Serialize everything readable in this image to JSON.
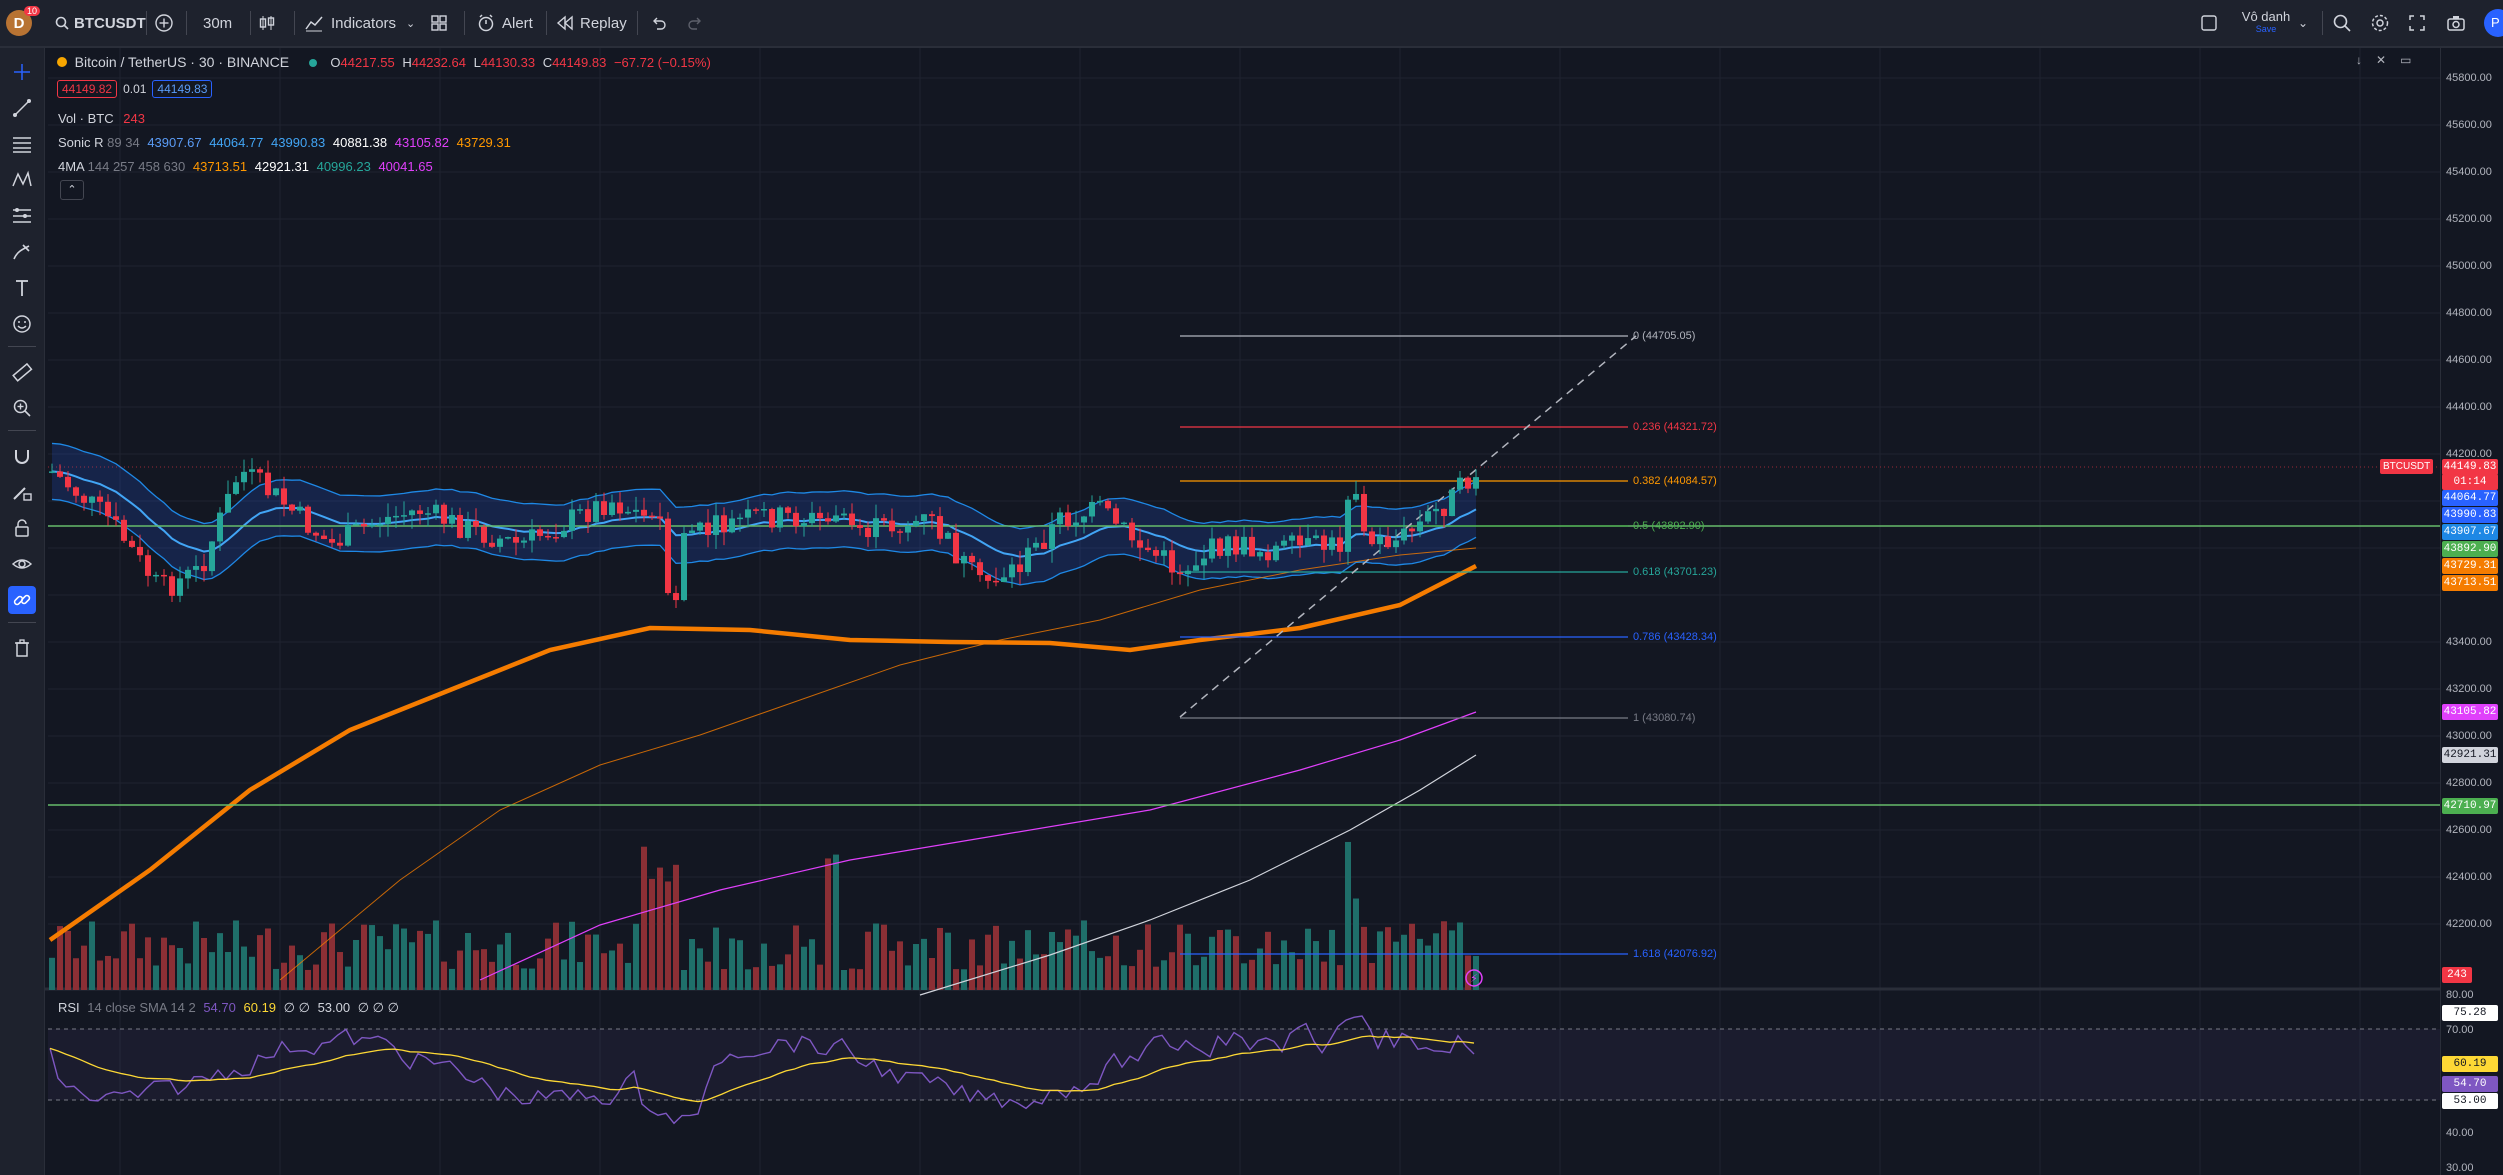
{
  "topbar": {
    "avatar_letter": "D",
    "notif_count": "10",
    "symbol": "BTCUSDT",
    "interval": "30m",
    "indicators_label": "Indicators",
    "alert_label": "Alert",
    "replay_label": "Replay",
    "layout_name": "Vô danh",
    "save_label": "Save",
    "publish_label": "P"
  },
  "legend": {
    "title": "Bitcoin / TetherUS · 30 · BINANCE",
    "o_label": "O",
    "o_val": "44217.55",
    "h_label": "H",
    "h_val": "44232.64",
    "l_label": "L",
    "l_val": "44130.33",
    "c_label": "C",
    "c_val": "44149.83",
    "change": "−67.72 (−0.15%)",
    "sell_price": "44149.82",
    "spread": "0.01",
    "buy_price": "44149.83",
    "vol_name": "Vol · BTC",
    "vol_val": "243",
    "sonic_name": "Sonic R",
    "sonic_params": "89 34",
    "sonic_vals": [
      "43907.67",
      "44064.77",
      "43990.83",
      "40881.38",
      "43105.82",
      "43729.31"
    ],
    "ma_name": "4MA",
    "ma_params": "144 257 458 630",
    "ma_vals": [
      "43713.51",
      "42921.31",
      "40996.23",
      "40041.65"
    ],
    "rsi_name": "RSI",
    "rsi_params": "14 close SMA 14 2",
    "rsi_vals": [
      "54.70",
      "60.19"
    ],
    "rsi_nulls": "∅ ∅",
    "rsi_level": "53.00",
    "rsi_nulls2": "∅ ∅ ∅"
  },
  "price_axis": [
    "45800.00",
    "45600.00",
    "45400.00",
    "45200.00",
    "45000.00",
    "44800.00",
    "44600.00",
    "44400.00",
    "44200.00",
    "43400.00",
    "43200.00",
    "43000.00",
    "42800.00",
    "42600.00",
    "42400.00",
    "42200.00"
  ],
  "rsi_axis": [
    "80.00",
    "70.00",
    "40.00",
    "30.00"
  ],
  "price_tags": {
    "symbol_tag": "BTCUSDT",
    "last": "44149.83",
    "countdown": "01:14",
    "t1": "44064.77",
    "t2": "43990.83",
    "t3": "43907.67",
    "t4": "43892.90",
    "t5": "43729.31",
    "t6": "43713.51",
    "t7": "43105.82",
    "t8": "42921.31",
    "t9": "42710.97",
    "vol": "243",
    "rsi1": "75.28",
    "rsi2": "60.19",
    "rsi3": "54.70",
    "rsi4": "53.00"
  },
  "fib": [
    {
      "label": "0 (44705.05)",
      "color": "#b2b5be"
    },
    {
      "label": "0.236 (44321.72)",
      "color": "#f23645"
    },
    {
      "label": "0.382 (44084.57)",
      "color": "#ff9800"
    },
    {
      "label": "0.5 (43892.90)",
      "color": "#4caf50"
    },
    {
      "label": "0.618 (43701.23)",
      "color": "#26a69a"
    },
    {
      "label": "0.786 (43428.34)",
      "color": "#2962ff"
    },
    {
      "label": "1 (43080.74)",
      "color": "#787b86"
    },
    {
      "label": "1.618 (42076.92)",
      "color": "#2962ff"
    }
  ],
  "colors": {
    "up": "#26a69a",
    "down": "#f23645",
    "bg": "#131722",
    "panel": "#1e222d",
    "accent": "#2962ff",
    "ma_orange": "#f57c00",
    "sonic_band": "#1e88e5",
    "ma_magenta": "#e040fb",
    "ma_white": "#d1d4dc",
    "rsi_line": "#7e57c2",
    "rsi_ma": "#fdd835"
  },
  "icons": [
    "avatar",
    "search-icon",
    "plus-icon",
    "candles-icon",
    "indicators-icon",
    "templates-icon",
    "alert-icon",
    "replay-icon",
    "undo-icon",
    "redo-icon",
    "layout-icon",
    "search-icon",
    "settings-icon",
    "fullscreen-icon",
    "camera-icon"
  ]
}
